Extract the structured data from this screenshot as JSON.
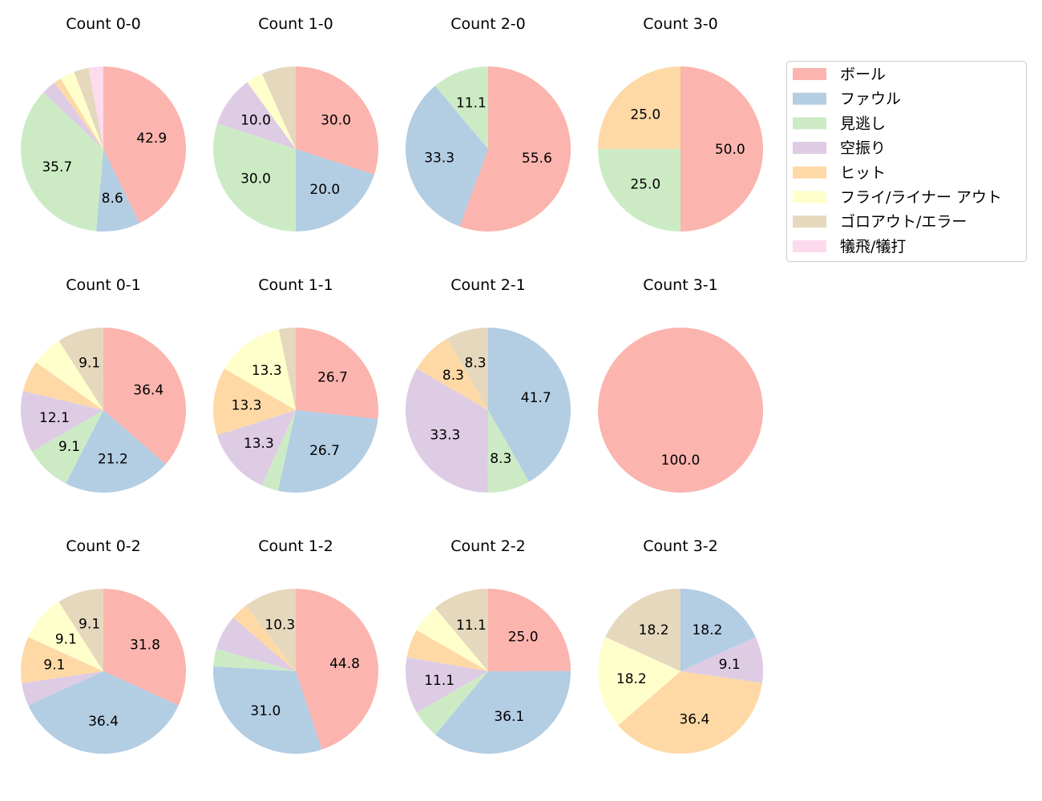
{
  "chart_data": [
    {
      "type": "pie",
      "title": "Count 0-0",
      "values": [
        42.9,
        8.6,
        35.7,
        2.9,
        1.4,
        2.9,
        2.9,
        2.9
      ]
    },
    {
      "type": "pie",
      "title": "Count 1-0",
      "values": [
        30.0,
        20.0,
        30.0,
        10.0,
        0,
        3.3,
        6.7,
        0
      ]
    },
    {
      "type": "pie",
      "title": "Count 2-0",
      "values": [
        55.6,
        33.3,
        11.1,
        0,
        0,
        0,
        0,
        0
      ]
    },
    {
      "type": "pie",
      "title": "Count 3-0",
      "values": [
        50.0,
        0,
        25.0,
        0,
        25.0,
        0,
        0,
        0
      ]
    },
    {
      "type": "pie",
      "title": "Count 0-1",
      "values": [
        36.4,
        21.2,
        9.1,
        12.1,
        6.1,
        6.1,
        9.1,
        0
      ]
    },
    {
      "type": "pie",
      "title": "Count 1-1",
      "values": [
        26.7,
        26.7,
        3.3,
        13.3,
        13.3,
        13.3,
        3.3,
        0
      ]
    },
    {
      "type": "pie",
      "title": "Count 2-1",
      "values": [
        0,
        41.7,
        8.3,
        33.3,
        8.3,
        0,
        8.3,
        0
      ]
    },
    {
      "type": "pie",
      "title": "Count 3-1",
      "values": [
        100.0,
        0,
        0,
        0,
        0,
        0,
        0,
        0
      ]
    },
    {
      "type": "pie",
      "title": "Count 0-2",
      "values": [
        31.8,
        36.4,
        0,
        4.5,
        9.1,
        9.1,
        9.1,
        0
      ]
    },
    {
      "type": "pie",
      "title": "Count 1-2",
      "values": [
        44.8,
        31.0,
        3.4,
        6.9,
        3.4,
        0,
        10.3,
        0
      ]
    },
    {
      "type": "pie",
      "title": "Count 2-2",
      "values": [
        25.0,
        36.1,
        5.6,
        11.1,
        5.6,
        5.6,
        11.1,
        0
      ]
    },
    {
      "type": "pie",
      "title": "Count 3-2",
      "values": [
        0,
        18.2,
        0,
        9.1,
        36.4,
        18.2,
        18.2,
        0
      ]
    }
  ],
  "legend": {
    "placement": "right",
    "labels": [
      "ボール",
      "ファウル",
      "見逃し",
      "空振り",
      "ヒット",
      "フライ/ライナー アウト",
      "ゴロアウト/エラー",
      "犠飛/犠打"
    ]
  },
  "colors": [
    "#fbb4ae",
    "#b3cde3",
    "#ccebc5",
    "#decbe4",
    "#fed9a6",
    "#ffffcc",
    "#e5d8bd",
    "#fddaec"
  ],
  "label_threshold_percent": 8
}
